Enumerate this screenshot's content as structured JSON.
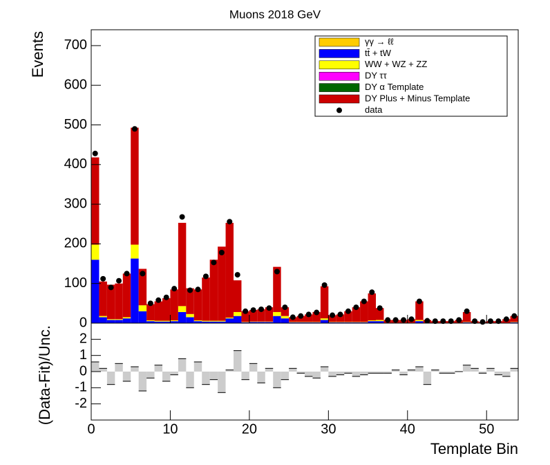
{
  "chart_data": {
    "type": "stacked_hist_ratio",
    "title": "Muons 2018 GeV",
    "ylabel": "Events",
    "xlabel": "Template Bin",
    "ratio_ylabel": "(Data-Fit)/Unc.",
    "xlim": [
      0,
      54
    ],
    "xticks": [
      0,
      10,
      20,
      30,
      40,
      50
    ],
    "ylim": [
      0,
      740
    ],
    "yticks": [
      0,
      100,
      200,
      300,
      400,
      500,
      600,
      700
    ],
    "ratio_ylim": [
      -3,
      3
    ],
    "ratio_yticks": [
      -2,
      -1,
      0,
      1,
      2
    ],
    "series": [
      {
        "name": "γγ → ℓℓ",
        "color": "#ffcc00",
        "values": [
          0,
          0,
          0,
          0,
          0,
          0,
          0,
          0,
          0,
          0,
          0,
          0,
          0,
          0,
          0,
          0,
          0,
          0,
          0,
          0,
          0,
          0,
          0,
          0,
          0,
          0,
          0,
          0,
          0,
          0,
          0,
          0,
          0,
          0,
          0,
          0,
          0,
          0,
          0,
          0,
          0,
          0,
          0,
          0,
          0,
          0,
          0,
          0,
          0,
          0,
          0,
          0,
          0,
          0
        ]
      },
      {
        "name": "tt̄ + tW",
        "color": "#0000ff",
        "values": [
          160,
          15,
          8,
          8,
          12,
          163,
          30,
          5,
          4,
          4,
          5,
          28,
          15,
          5,
          4,
          4,
          4,
          12,
          18,
          2,
          3,
          3,
          3,
          18,
          12,
          2,
          2,
          2,
          2,
          8,
          2,
          2,
          2,
          2,
          2,
          5,
          5,
          1,
          1,
          1,
          1,
          5,
          1,
          1,
          1,
          1,
          1,
          2,
          1,
          1,
          1,
          1,
          1,
          2
        ]
      },
      {
        "name": "WW + WZ + ZZ",
        "color": "#ffff00",
        "values": [
          38,
          3,
          2,
          2,
          3,
          35,
          15,
          2,
          2,
          2,
          2,
          15,
          8,
          2,
          2,
          2,
          2,
          2,
          10,
          1,
          1,
          1,
          1,
          10,
          6,
          1,
          1,
          1,
          1,
          4,
          1,
          1,
          1,
          1,
          1,
          2,
          3,
          0,
          0,
          0,
          0,
          3,
          0,
          0,
          0,
          0,
          0,
          1,
          0,
          0,
          0,
          0,
          0,
          1
        ]
      },
      {
        "name": "DY ττ",
        "color": "#ff00ff",
        "values": [
          0,
          0,
          0,
          0,
          0,
          0,
          0,
          0,
          0,
          0,
          0,
          0,
          0,
          0,
          0,
          0,
          0,
          0,
          0,
          0,
          0,
          0,
          0,
          0,
          0,
          0,
          0,
          0,
          0,
          0,
          0,
          0,
          0,
          0,
          0,
          0,
          0,
          0,
          0,
          0,
          0,
          0,
          0,
          0,
          0,
          0,
          0,
          0,
          0,
          0,
          0,
          0,
          0,
          0
        ]
      },
      {
        "name": "DY α Template",
        "color": "#006600",
        "values": [
          0,
          0,
          0,
          0,
          0,
          0,
          0,
          0,
          0,
          0,
          0,
          0,
          0,
          0,
          0,
          0,
          0,
          0,
          0,
          0,
          0,
          0,
          0,
          0,
          0,
          0,
          0,
          0,
          0,
          0,
          0,
          0,
          0,
          0,
          0,
          0,
          0,
          0,
          0,
          0,
          0,
          0,
          0,
          0,
          0,
          0,
          0,
          0,
          0,
          0,
          0,
          0,
          0,
          0
        ]
      },
      {
        "name": "DY Plus + Minus Template",
        "color": "#cc0000",
        "values": [
          220,
          87,
          87,
          90,
          110,
          295,
          92,
          41,
          49,
          57,
          78,
          210,
          65,
          78,
          109,
          154,
          187,
          239,
          80,
          27,
          29,
          31,
          36,
          114,
          22,
          12,
          15,
          19,
          25,
          81,
          17,
          19,
          27,
          37,
          52,
          68,
          30,
          7,
          7,
          7,
          9,
          47,
          7,
          4,
          4,
          4,
          7,
          25,
          4,
          2,
          4,
          4,
          9,
          15
        ]
      }
    ],
    "data": {
      "name": "data",
      "values": [
        428,
        112,
        90,
        107,
        125,
        490,
        125,
        50,
        58,
        65,
        87,
        268,
        83,
        85,
        118,
        153,
        178,
        256,
        122,
        30,
        33,
        35,
        38,
        130,
        40,
        15,
        18,
        22,
        27,
        96,
        20,
        22,
        30,
        40,
        55,
        78,
        38,
        8,
        8,
        8,
        10,
        55,
        6,
        5,
        5,
        5,
        8,
        30,
        5,
        3,
        5,
        5,
        10,
        18
      ]
    },
    "ratio": [
      0.6,
      0.2,
      -0.8,
      0.5,
      -0.6,
      0.3,
      -1.2,
      -0.4,
      0.4,
      -0.6,
      -0.2,
      0.8,
      -1.0,
      0.6,
      -0.8,
      -0.5,
      -1.3,
      0.1,
      1.3,
      -0.5,
      0.5,
      -0.7,
      0.2,
      -1.0,
      -0.5,
      0.2,
      -0.1,
      -0.3,
      -0.4,
      0.3,
      -0.3,
      -0.2,
      -0.1,
      -0.3,
      -0.2,
      -0.1,
      -0.1,
      -0.1,
      0.1,
      -0.2,
      0.1,
      0.3,
      -0.8,
      0.1,
      -0.1,
      -0.1,
      0,
      0.4,
      0.2,
      -0.1,
      0.2,
      -0.2,
      -0.3,
      0.2
    ]
  }
}
